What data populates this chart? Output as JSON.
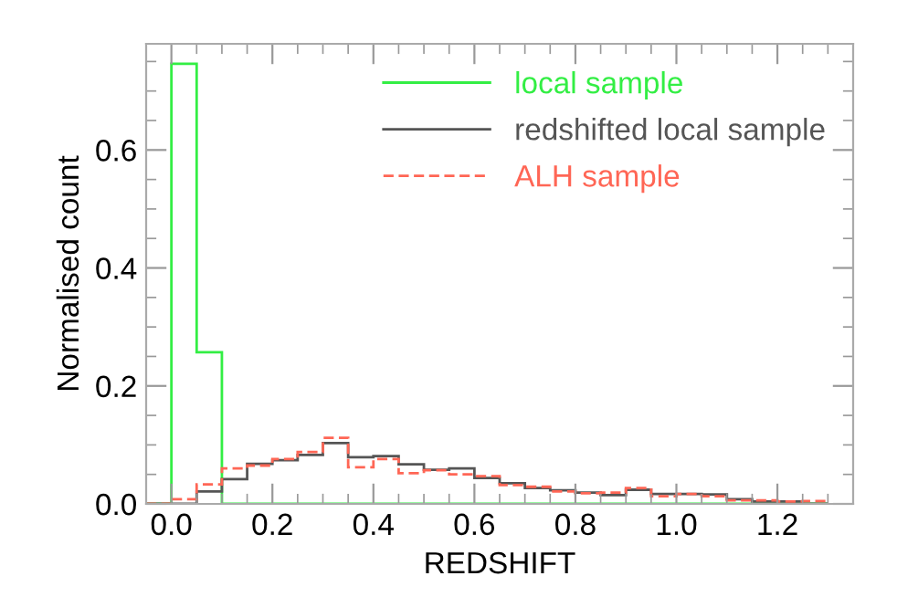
{
  "chart_data": {
    "type": "histogram",
    "xlabel": "REDSHIFT",
    "ylabel": "Normalised count",
    "bins": [
      -0.05,
      0.0,
      0.05,
      0.1,
      0.15,
      0.2,
      0.25,
      0.3,
      0.35,
      0.4,
      0.45,
      0.5,
      0.55,
      0.6,
      0.65,
      0.7,
      0.75,
      0.8,
      0.85,
      0.9,
      0.95,
      1.0,
      1.05,
      1.1,
      1.15,
      1.2,
      1.25,
      1.3
    ],
    "series": [
      {
        "name": "local sample",
        "color": "#33ee44",
        "line_style": "solid",
        "values": [
          0,
          0.746,
          0.257,
          0,
          0,
          0,
          0,
          0,
          0,
          0,
          0,
          0,
          0,
          0,
          0,
          0,
          0,
          0,
          0,
          0,
          0,
          0,
          0,
          0,
          0,
          0,
          0
        ]
      },
      {
        "name": "redshifted local sample",
        "color": "#555555",
        "line_style": "solid",
        "values": [
          0,
          0,
          0.021,
          0.042,
          0.068,
          0.074,
          0.083,
          0.103,
          0.079,
          0.081,
          0.067,
          0.058,
          0.06,
          0.044,
          0.035,
          0.027,
          0.023,
          0.019,
          0.015,
          0.024,
          0.017,
          0.017,
          0.016,
          0.008,
          0.004,
          0.004,
          0
        ]
      },
      {
        "name": "ALH sample",
        "color": "#ff6655",
        "line_style": "dashed",
        "values": [
          0,
          0.008,
          0.033,
          0.06,
          0.065,
          0.076,
          0.088,
          0.112,
          0.062,
          0.076,
          0.052,
          0.057,
          0.05,
          0.047,
          0.032,
          0.029,
          0.021,
          0.018,
          0.019,
          0.027,
          0.013,
          0.017,
          0.013,
          0.006,
          0.006,
          0.004,
          0.005
        ]
      }
    ],
    "xlim": [
      -0.05,
      1.35
    ],
    "ylim": [
      0,
      0.78
    ],
    "xticks": [
      {
        "value": 0.0,
        "label": "0.0"
      },
      0.2,
      0.4,
      0.6,
      0.8,
      {
        "value": 1.0,
        "label": "1.0"
      },
      1.2
    ],
    "yticks": [
      {
        "value": 0.0,
        "label": "0.0"
      },
      0.2,
      0.4,
      0.6
    ],
    "legend": "top right",
    "grid": false
  }
}
